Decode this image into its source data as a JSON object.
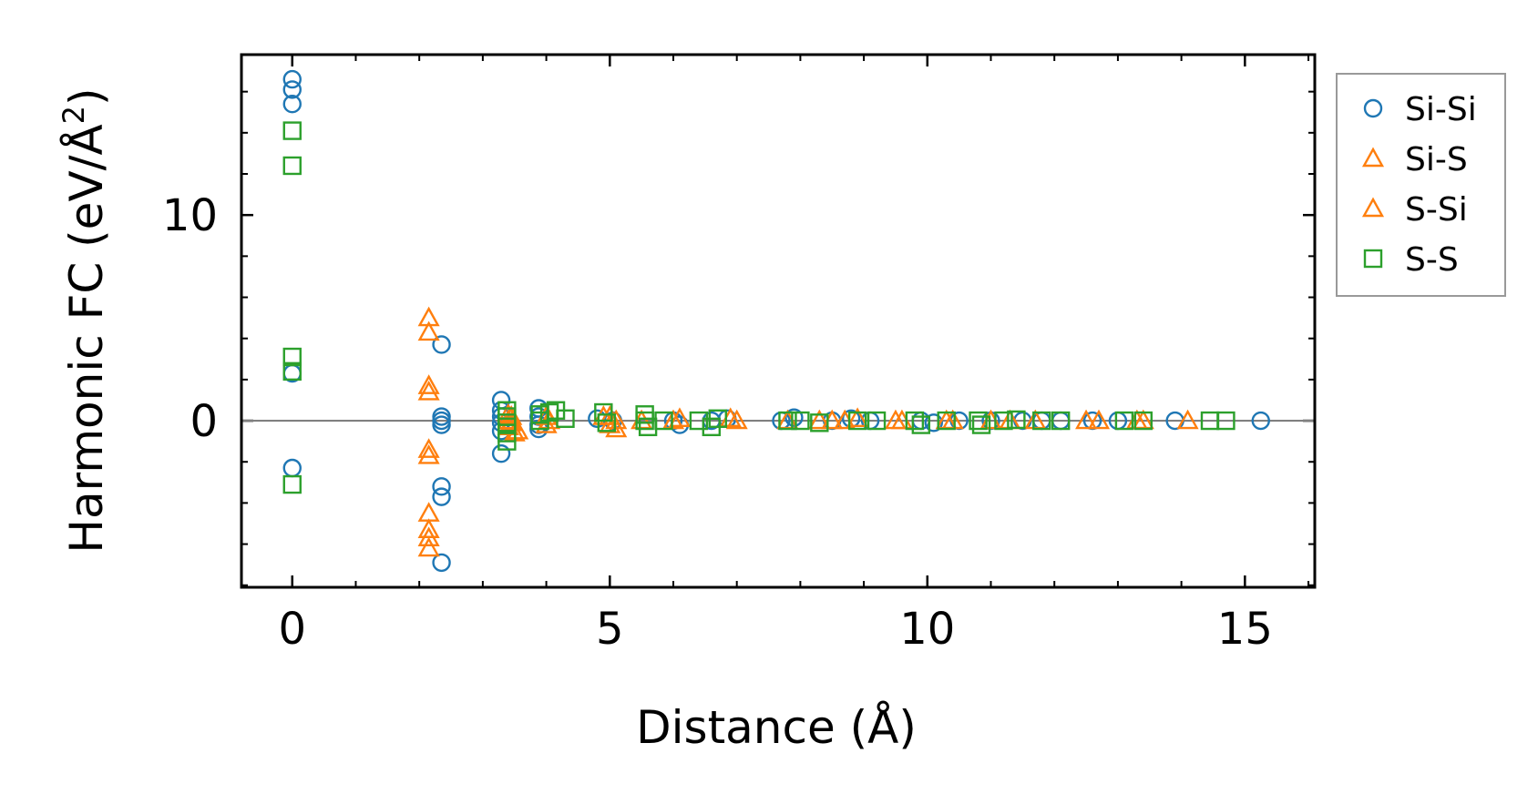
{
  "chart_data": {
    "type": "scatter",
    "xlabel": "Distance (Å)",
    "ylabel_main": "Harmonic FC (eV/Å",
    "ylabel_sup": "2",
    "ylabel_close": ")",
    "xlim": [
      -0.8,
      16.1
    ],
    "ylim": [
      -8.1,
      17.8
    ],
    "xticks": [
      0,
      5,
      10,
      15
    ],
    "xtick_labels": [
      "0",
      "5",
      "10",
      "15"
    ],
    "yticks": [
      0,
      10
    ],
    "ytick_labels": [
      "0",
      "10"
    ],
    "xminor_step": 1,
    "yminor_step": 2,
    "reference_line_y": 0,
    "grid": false,
    "legend_position": "outside-right-top",
    "series": [
      {
        "name": "Si-Si",
        "marker": "circle",
        "color": "#1f77b4",
        "points": [
          [
            0,
            16.6
          ],
          [
            0,
            16.1
          ],
          [
            0,
            15.4
          ],
          [
            0,
            2.3
          ],
          [
            0,
            -2.3
          ],
          [
            2.35,
            3.7
          ],
          [
            2.35,
            0.2
          ],
          [
            2.35,
            0.0
          ],
          [
            2.35,
            -0.2
          ],
          [
            2.35,
            -3.2
          ],
          [
            2.35,
            -3.7
          ],
          [
            2.35,
            -6.9
          ],
          [
            3.29,
            1.0
          ],
          [
            3.29,
            0.5
          ],
          [
            3.29,
            0.2
          ],
          [
            3.29,
            -0.1
          ],
          [
            3.29,
            -0.5
          ],
          [
            3.29,
            -1.6
          ],
          [
            3.88,
            0.6
          ],
          [
            3.88,
            0.2
          ],
          [
            3.88,
            -0.2
          ],
          [
            3.88,
            -0.4
          ],
          [
            4.8,
            0.1
          ],
          [
            5.05,
            0.0
          ],
          [
            6.0,
            0.0
          ],
          [
            6.1,
            -0.2
          ],
          [
            6.6,
            0.0
          ],
          [
            6.85,
            0.1
          ],
          [
            7.7,
            0.0
          ],
          [
            7.9,
            0.15
          ],
          [
            8.5,
            0.0
          ],
          [
            8.8,
            0.1
          ],
          [
            9.1,
            0.0
          ],
          [
            9.9,
            0.0
          ],
          [
            10.1,
            -0.1
          ],
          [
            10.5,
            0.0
          ],
          [
            11.0,
            0.0
          ],
          [
            11.5,
            0.0
          ],
          [
            11.8,
            0.0
          ],
          [
            12.1,
            0.0
          ],
          [
            12.6,
            0.0
          ],
          [
            13.0,
            0.0
          ],
          [
            13.9,
            0.0
          ],
          [
            15.25,
            0.0
          ]
        ]
      },
      {
        "name": "Si-S",
        "marker": "triangle",
        "color": "#ff7f0e",
        "points": [
          [
            2.15,
            5.0
          ],
          [
            2.15,
            4.3
          ],
          [
            2.15,
            1.7
          ],
          [
            2.15,
            1.4
          ],
          [
            2.15,
            -1.4
          ],
          [
            2.15,
            -1.7
          ],
          [
            2.15,
            -4.5
          ],
          [
            2.15,
            -5.3
          ],
          [
            2.15,
            -5.7
          ],
          [
            2.15,
            -6.2
          ],
          [
            3.4,
            0.3
          ],
          [
            3.4,
            0.0
          ],
          [
            3.4,
            -0.3
          ],
          [
            3.5,
            -0.6
          ],
          [
            4.0,
            0.2
          ],
          [
            4.0,
            -0.2
          ],
          [
            4.9,
            0.2
          ],
          [
            5.1,
            0.0
          ],
          [
            5.1,
            -0.4
          ],
          [
            6.1,
            0.1
          ],
          [
            6.9,
            0.1
          ],
          [
            7.0,
            0.0
          ],
          [
            8.3,
            0.0
          ],
          [
            8.7,
            0.0
          ],
          [
            9.5,
            0.0
          ],
          [
            10.4,
            0.0
          ],
          [
            11.0,
            0.0
          ],
          [
            11.7,
            0.0
          ],
          [
            12.7,
            0.0
          ],
          [
            13.4,
            0.0
          ],
          [
            14.1,
            0.0
          ]
        ]
      },
      {
        "name": "S-Si",
        "marker": "triangle",
        "color": "#ff7f0e",
        "points": [
          [
            3.45,
            0.2
          ],
          [
            3.45,
            -0.1
          ],
          [
            3.55,
            -0.5
          ],
          [
            4.05,
            0.0
          ],
          [
            5.0,
            0.2
          ],
          [
            5.0,
            -0.2
          ],
          [
            5.5,
            0.0
          ],
          [
            6.0,
            0.0
          ],
          [
            7.8,
            0.0
          ],
          [
            8.5,
            0.0
          ],
          [
            8.9,
            0.1
          ],
          [
            9.6,
            0.0
          ],
          [
            10.3,
            0.0
          ],
          [
            11.3,
            0.0
          ],
          [
            12.5,
            0.0
          ],
          [
            13.3,
            0.0
          ]
        ]
      },
      {
        "name": "S-S",
        "marker": "square",
        "color": "#2ca02c",
        "points": [
          [
            0,
            14.1
          ],
          [
            0,
            12.4
          ],
          [
            0,
            3.1
          ],
          [
            0,
            2.4
          ],
          [
            0,
            -3.1
          ],
          [
            3.38,
            0.5
          ],
          [
            3.38,
            0.2
          ],
          [
            3.38,
            -0.1
          ],
          [
            3.38,
            -0.6
          ],
          [
            3.38,
            -1.0
          ],
          [
            3.9,
            0.3
          ],
          [
            3.9,
            0.0
          ],
          [
            4.05,
            0.4
          ],
          [
            4.15,
            0.5
          ],
          [
            4.3,
            0.1
          ],
          [
            4.9,
            0.4
          ],
          [
            4.95,
            -0.1
          ],
          [
            5.55,
            0.3
          ],
          [
            5.55,
            0.0
          ],
          [
            5.6,
            -0.3
          ],
          [
            5.85,
            0.0
          ],
          [
            6.4,
            0.0
          ],
          [
            6.6,
            -0.3
          ],
          [
            6.7,
            0.1
          ],
          [
            7.8,
            0.0
          ],
          [
            8.0,
            0.0
          ],
          [
            8.3,
            -0.1
          ],
          [
            8.9,
            0.0
          ],
          [
            9.2,
            0.0
          ],
          [
            9.8,
            0.0
          ],
          [
            9.9,
            -0.2
          ],
          [
            10.3,
            0.0
          ],
          [
            10.8,
            0.0
          ],
          [
            10.85,
            -0.2
          ],
          [
            11.2,
            0.0
          ],
          [
            11.4,
            0.05
          ],
          [
            11.8,
            0.0
          ],
          [
            12.1,
            0.0
          ],
          [
            13.1,
            0.0
          ],
          [
            13.4,
            0.0
          ],
          [
            14.45,
            0.0
          ],
          [
            14.7,
            0.0
          ]
        ]
      }
    ]
  }
}
